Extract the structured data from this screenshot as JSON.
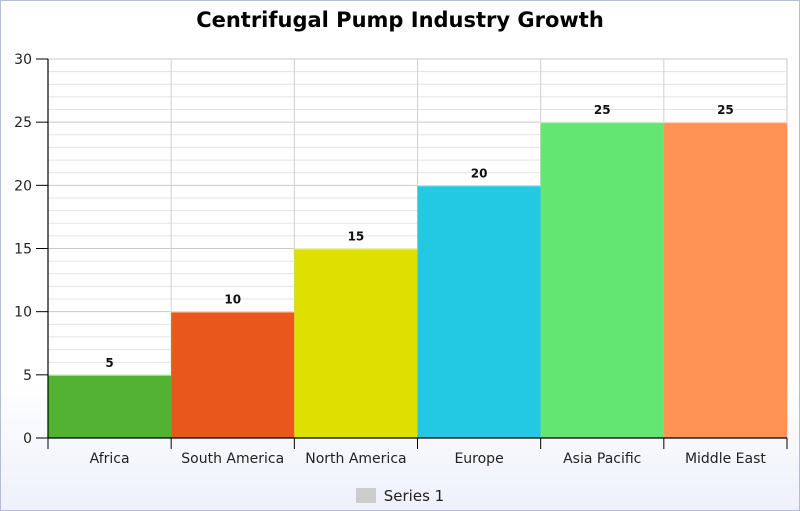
{
  "chart_data": {
    "type": "bar",
    "title": "Centrifugal Pump Industry Growth",
    "xlabel": "",
    "ylabel": "",
    "categories": [
      "Africa",
      "South America",
      "North America",
      "Europe",
      "Asia Pacific",
      "Middle East"
    ],
    "series": [
      {
        "name": "Series 1",
        "values": [
          5,
          10,
          15,
          20,
          25,
          25
        ]
      }
    ],
    "data_labels": [
      "5",
      "10",
      "15",
      "20",
      "25",
      "25"
    ],
    "bar_colors": [
      "#52b332",
      "#e8571c",
      "#dde000",
      "#23c8e2",
      "#64e673",
      "#ff9355"
    ],
    "ylim": [
      0,
      30
    ],
    "yticks": [
      "0",
      "5",
      "10",
      "15",
      "20",
      "25",
      "30"
    ],
    "grid": true,
    "legend": {
      "position": "bottom",
      "entries": [
        "Series 1"
      ],
      "swatch_color": "#cccccc"
    }
  }
}
